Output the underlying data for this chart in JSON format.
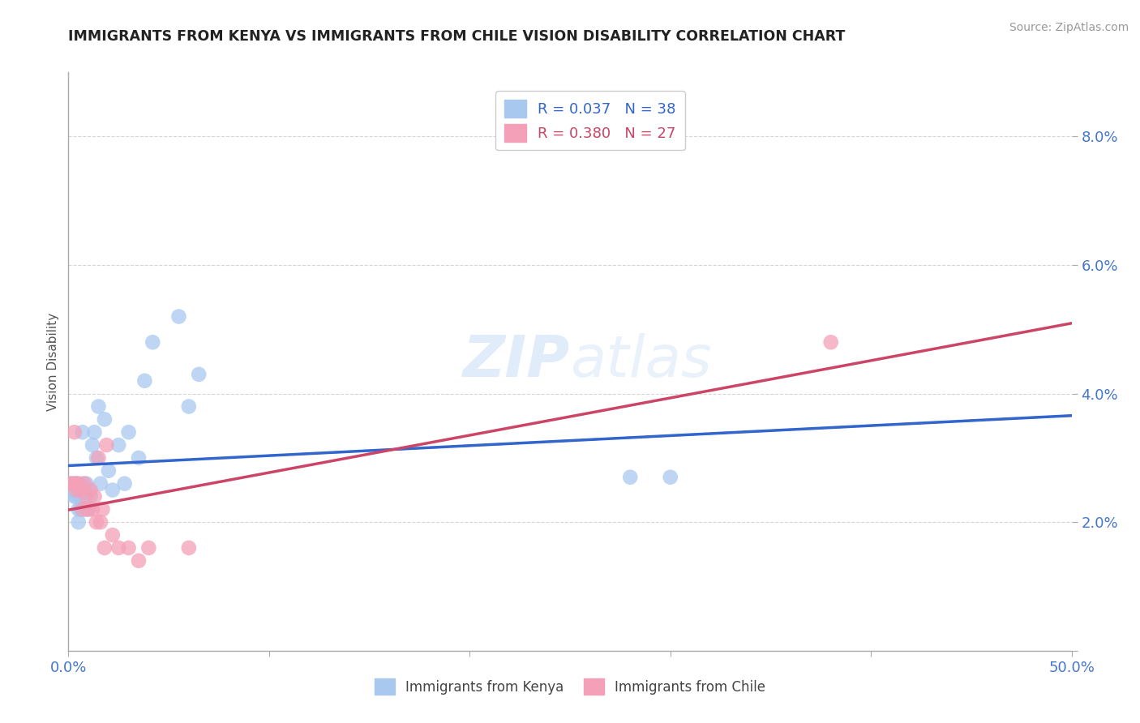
{
  "title": "IMMIGRANTS FROM KENYA VS IMMIGRANTS FROM CHILE VISION DISABILITY CORRELATION CHART",
  "source": "Source: ZipAtlas.com",
  "xlabel_kenya": "Immigrants from Kenya",
  "xlabel_chile": "Immigrants from Chile",
  "ylabel": "Vision Disability",
  "xlim": [
    0.0,
    0.5
  ],
  "ylim": [
    0.0,
    0.09
  ],
  "R_kenya": 0.037,
  "N_kenya": 38,
  "R_chile": 0.38,
  "N_chile": 27,
  "kenya_color": "#a8c8f0",
  "chile_color": "#f4a0b8",
  "kenya_line_color": "#3366cc",
  "chile_line_color": "#cc4466",
  "watermark_line1": "ZIP",
  "watermark_line2": "atlas",
  "kenya_points_x": [
    0.0,
    0.002,
    0.003,
    0.003,
    0.004,
    0.004,
    0.005,
    0.005,
    0.006,
    0.006,
    0.007,
    0.007,
    0.008,
    0.008,
    0.009,
    0.009,
    0.01,
    0.01,
    0.011,
    0.012,
    0.013,
    0.014,
    0.015,
    0.016,
    0.018,
    0.02,
    0.022,
    0.025,
    0.028,
    0.03,
    0.035,
    0.038,
    0.042,
    0.055,
    0.06,
    0.065,
    0.28,
    0.3
  ],
  "kenya_points_y": [
    0.026,
    0.025,
    0.026,
    0.024,
    0.026,
    0.024,
    0.022,
    0.02,
    0.024,
    0.022,
    0.034,
    0.026,
    0.025,
    0.022,
    0.026,
    0.022,
    0.025,
    0.022,
    0.024,
    0.032,
    0.034,
    0.03,
    0.038,
    0.026,
    0.036,
    0.028,
    0.025,
    0.032,
    0.026,
    0.034,
    0.03,
    0.042,
    0.048,
    0.052,
    0.038,
    0.043,
    0.027,
    0.027
  ],
  "chile_points_x": [
    0.001,
    0.002,
    0.003,
    0.004,
    0.004,
    0.005,
    0.006,
    0.007,
    0.008,
    0.009,
    0.01,
    0.011,
    0.012,
    0.013,
    0.014,
    0.015,
    0.016,
    0.017,
    0.018,
    0.019,
    0.022,
    0.025,
    0.03,
    0.035,
    0.04,
    0.06,
    0.38
  ],
  "chile_points_y": [
    0.026,
    0.026,
    0.034,
    0.026,
    0.025,
    0.026,
    0.025,
    0.022,
    0.026,
    0.024,
    0.022,
    0.025,
    0.022,
    0.024,
    0.02,
    0.03,
    0.02,
    0.022,
    0.016,
    0.032,
    0.018,
    0.016,
    0.016,
    0.014,
    0.016,
    0.016,
    0.048
  ],
  "background_color": "#ffffff",
  "grid_color": "#cccccc",
  "title_color": "#222222",
  "tick_color": "#4477cc"
}
